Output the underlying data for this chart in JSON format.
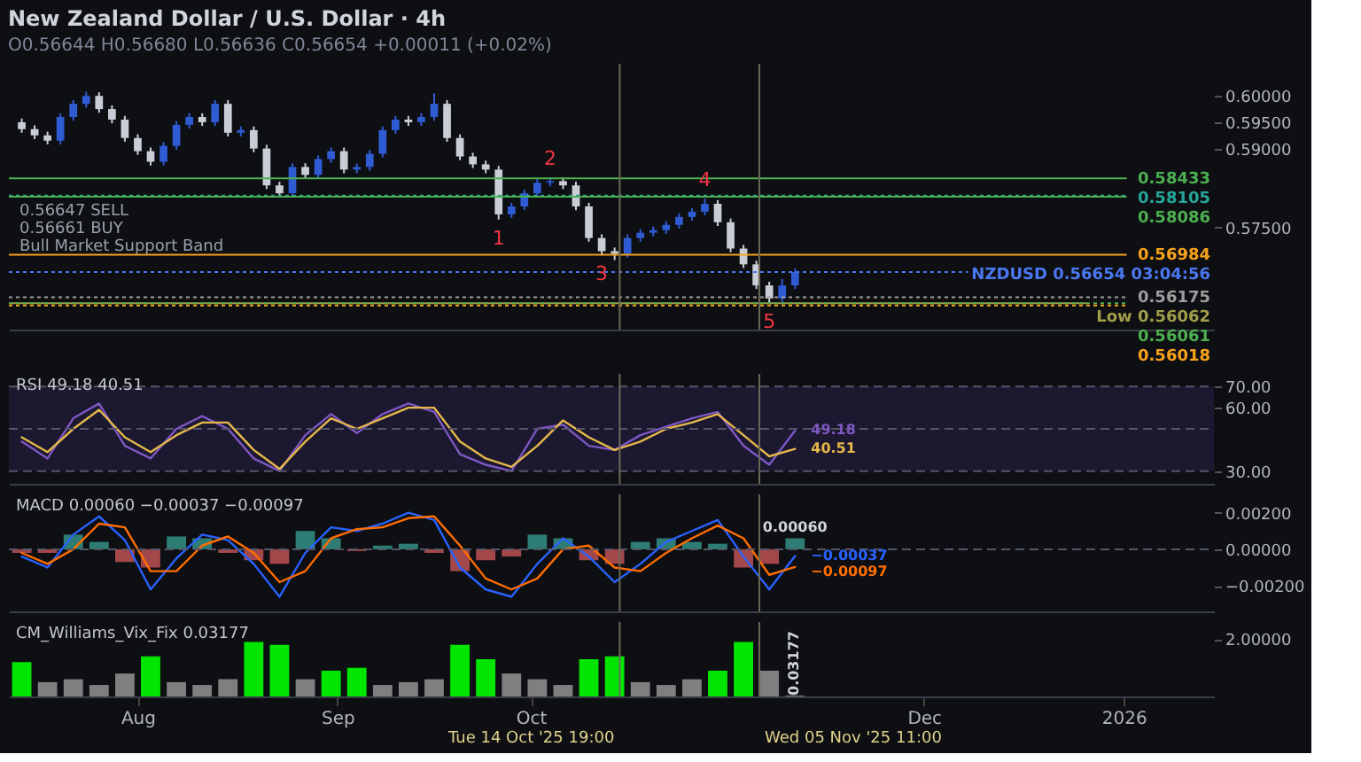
{
  "chart_data": [
    {
      "type": "candlestick",
      "title": "New Zealand Dollar / U.S. Dollar · 4h",
      "subtitle": "O0.56644 H0.56680 L0.56636 C0.56654 +0.00011 (+0.02%)",
      "x": [
        "2025-07-14",
        "2025-07-16",
        "2025-07-18",
        "2025-07-20",
        "2025-07-22",
        "2025-07-24",
        "2025-07-26",
        "2025-07-28",
        "2025-07-30",
        "2025-08-01",
        "2025-08-03",
        "2025-08-05",
        "2025-08-07",
        "2025-08-09",
        "2025-08-11",
        "2025-08-13",
        "2025-08-15",
        "2025-08-17",
        "2025-08-19",
        "2025-08-21",
        "2025-08-23",
        "2025-08-25",
        "2025-08-27",
        "2025-08-29",
        "2025-08-31",
        "2025-09-02",
        "2025-09-04",
        "2025-09-06",
        "2025-09-08",
        "2025-09-10",
        "2025-09-12",
        "2025-09-14",
        "2025-09-16",
        "2025-09-18",
        "2025-09-20",
        "2025-09-22",
        "2025-09-24",
        "2025-09-26",
        "2025-09-28",
        "2025-09-30",
        "2025-10-02",
        "2025-10-04",
        "2025-10-06",
        "2025-10-08",
        "2025-10-10",
        "2025-10-12",
        "2025-10-14",
        "2025-10-16",
        "2025-10-18",
        "2025-10-20",
        "2025-10-22",
        "2025-10-24",
        "2025-10-26",
        "2025-10-28",
        "2025-10-30",
        "2025-11-01",
        "2025-11-03",
        "2025-11-05",
        "2025-11-07",
        "2025-11-09",
        "2025-11-11"
      ],
      "ohlc": [
        [
          0.595,
          0.5957,
          0.593,
          0.5937
        ],
        [
          0.5937,
          0.5944,
          0.5918,
          0.5925
        ],
        [
          0.5925,
          0.5932,
          0.5908,
          0.5915
        ],
        [
          0.5915,
          0.5967,
          0.5908,
          0.596
        ],
        [
          0.596,
          0.5992,
          0.5953,
          0.5985
        ],
        [
          0.5985,
          0.6008,
          0.5978,
          0.6
        ],
        [
          0.6,
          0.6007,
          0.5968,
          0.5975
        ],
        [
          0.5975,
          0.5982,
          0.5948,
          0.5955
        ],
        [
          0.5955,
          0.5962,
          0.5913,
          0.592
        ],
        [
          0.592,
          0.5927,
          0.5888,
          0.5895
        ],
        [
          0.5895,
          0.5902,
          0.5868,
          0.5875
        ],
        [
          0.5875,
          0.5912,
          0.5868,
          0.5905
        ],
        [
          0.5905,
          0.5952,
          0.5898,
          0.5945
        ],
        [
          0.5945,
          0.5967,
          0.5938,
          0.596
        ],
        [
          0.596,
          0.5967,
          0.5943,
          0.595
        ],
        [
          0.595,
          0.5992,
          0.5943,
          0.5985
        ],
        [
          0.5985,
          0.5992,
          0.5923,
          0.593
        ],
        [
          0.593,
          0.5942,
          0.5923,
          0.5935
        ],
        [
          0.5935,
          0.5942,
          0.5893,
          0.59
        ],
        [
          0.59,
          0.5907,
          0.5823,
          0.583
        ],
        [
          0.583,
          0.5837,
          0.5808,
          0.5815
        ],
        [
          0.5815,
          0.5872,
          0.5808,
          0.5865
        ],
        [
          0.5865,
          0.5872,
          0.5843,
          0.585
        ],
        [
          0.585,
          0.5887,
          0.5843,
          0.588
        ],
        [
          0.588,
          0.5902,
          0.5873,
          0.5895
        ],
        [
          0.5895,
          0.5902,
          0.5853,
          0.586
        ],
        [
          0.586,
          0.5872,
          0.5853,
          0.5865
        ],
        [
          0.5865,
          0.5897,
          0.5858,
          0.589
        ],
        [
          0.589,
          0.5942,
          0.5883,
          0.5935
        ],
        [
          0.5935,
          0.5962,
          0.5928,
          0.5955
        ],
        [
          0.5955,
          0.5962,
          0.5943,
          0.595
        ],
        [
          0.595,
          0.5967,
          0.5943,
          0.596
        ],
        [
          0.596,
          0.6005,
          0.5953,
          0.5985
        ],
        [
          0.5985,
          0.5992,
          0.5913,
          0.592
        ],
        [
          0.592,
          0.5927,
          0.5878,
          0.5885
        ],
        [
          0.5885,
          0.5892,
          0.5863,
          0.587
        ],
        [
          0.587,
          0.5877,
          0.5853,
          0.586
        ],
        [
          0.586,
          0.5867,
          0.5765,
          0.5775
        ],
        [
          0.5775,
          0.5797,
          0.5768,
          0.579
        ],
        [
          0.579,
          0.5822,
          0.5783,
          0.5815
        ],
        [
          0.5815,
          0.5843,
          0.5808,
          0.5835
        ],
        [
          0.5835,
          0.5845,
          0.5828,
          0.5838
        ],
        [
          0.5838,
          0.5845,
          0.5823,
          0.583
        ],
        [
          0.583,
          0.5837,
          0.5783,
          0.579
        ],
        [
          0.579,
          0.5797,
          0.5723,
          0.573
        ],
        [
          0.573,
          0.5737,
          0.5698,
          0.5705
        ],
        [
          0.5705,
          0.5712,
          0.5688,
          0.57
        ],
        [
          0.57,
          0.5737,
          0.5693,
          0.573
        ],
        [
          0.573,
          0.5747,
          0.5723,
          0.574
        ],
        [
          0.574,
          0.5752,
          0.5733,
          0.5745
        ],
        [
          0.5745,
          0.5762,
          0.5738,
          0.5755
        ],
        [
          0.5755,
          0.5777,
          0.5748,
          0.577
        ],
        [
          0.577,
          0.5787,
          0.5763,
          0.578
        ],
        [
          0.578,
          0.5805,
          0.5773,
          0.5795
        ],
        [
          0.5795,
          0.5802,
          0.5753,
          0.576
        ],
        [
          0.576,
          0.5767,
          0.5703,
          0.571
        ],
        [
          0.571,
          0.5717,
          0.5673,
          0.568
        ],
        [
          0.568,
          0.5687,
          0.5633,
          0.564
        ],
        [
          0.564,
          0.5647,
          0.56062,
          0.5615
        ],
        [
          0.5615,
          0.5652,
          0.5608,
          0.564
        ],
        [
          0.564,
          0.5672,
          0.5633,
          0.56654
        ]
      ],
      "colors": [
        "#c9cdd6",
        "#c9cdd6",
        "#c9cdd6",
        "#2f5bd3",
        "#2f5bd3",
        "#2f5bd3",
        "#c9cdd6",
        "#c9cdd6",
        "#c9cdd6",
        "#c9cdd6",
        "#c9cdd6",
        "#2f5bd3",
        "#2f5bd3",
        "#2f5bd3",
        "#c9cdd6",
        "#2f5bd3",
        "#c9cdd6",
        "#2f5bd3",
        "#c9cdd6",
        "#c9cdd6",
        "#c9cdd6",
        "#2f5bd3",
        "#c9cdd6",
        "#2f5bd3",
        "#2f5bd3",
        "#c9cdd6",
        "#2f5bd3",
        "#2f5bd3",
        "#2f5bd3",
        "#2f5bd3",
        "#c9cdd6",
        "#2f5bd3",
        "#2f5bd3",
        "#c9cdd6",
        "#c9cdd6",
        "#c9cdd6",
        "#c9cdd6",
        "#c9cdd6",
        "#2f5bd3",
        "#2f5bd3",
        "#2f5bd3",
        "#2f5bd3",
        "#c9cdd6",
        "#c9cdd6",
        "#c9cdd6",
        "#c9cdd6",
        "#c9cdd6",
        "#2f5bd3",
        "#2f5bd3",
        "#2f5bd3",
        "#2f5bd3",
        "#2f5bd3",
        "#2f5bd3",
        "#2f5bd3",
        "#c9cdd6",
        "#c9cdd6",
        "#c9cdd6",
        "#c9cdd6",
        "#c9cdd6",
        "#2f5bd3",
        "#2f5bd3"
      ],
      "xlim": [
        "2025-07-12",
        "2026-01-15"
      ],
      "ylim": [
        0.5556,
        0.6061
      ],
      "yticks": [
        {
          "value": 0.575,
          "label": "0.57500"
        },
        {
          "value": 0.59,
          "label": "0.59000"
        },
        {
          "value": 0.595,
          "label": "0.59500"
        },
        {
          "value": 0.6,
          "label": "0.60000"
        }
      ],
      "tick_labels": "y",
      "ref_lines": [
        {
          "axis": "y",
          "value": 0.58433,
          "label": "0.58433",
          "color": "#4caf50"
        },
        {
          "axis": "y",
          "value": 0.58105,
          "label": "0.58105",
          "color": "#26a69a",
          "line_style": "dotted"
        },
        {
          "axis": "y",
          "value": 0.58086,
          "label": "0.58086",
          "color": "#4caf50"
        },
        {
          "axis": "y",
          "value": 0.56984,
          "label": "0.56984",
          "color": "#f7a21b"
        },
        {
          "axis": "y",
          "value": 0.56654,
          "label": "NZDUSD 0.56654 03:04:56",
          "color": "#4a78f0",
          "line_style": "dotted"
        },
        {
          "axis": "y",
          "value": 0.56175,
          "label": "0.56175",
          "color": "#9e9e9e",
          "line_style": "dotted"
        },
        {
          "axis": "y",
          "value": 0.56062,
          "label": "Low 0.56062",
          "color": "#a19d4a"
        },
        {
          "axis": "y",
          "value": 0.56061,
          "label": "0.56061",
          "color": "#4caf50",
          "line_style": "dotted"
        },
        {
          "axis": "y",
          "value": 0.56018,
          "label": "0.56018",
          "color": "#f7a21b",
          "line_style": "dotted"
        },
        {
          "axis": "x",
          "value": "2025-10-14T19:00",
          "color": "#6b6a55"
        },
        {
          "axis": "x",
          "value": "2025-11-05T11:00",
          "color": "#6b6a55"
        }
      ],
      "annotations": [
        {
          "text": "1",
          "x": "2025-09-26",
          "y": 0.5765
        },
        {
          "text": "2",
          "x": "2025-10-04",
          "y": 0.5845
        },
        {
          "text": "3",
          "x": "2025-10-12",
          "y": 0.5698
        },
        {
          "text": "4",
          "x": "2025-10-28",
          "y": 0.5805
        },
        {
          "text": "5",
          "x": "2025-11-07",
          "y": 0.56062
        },
        "0.56647 SELL",
        "0.56661 BUY",
        "Bull Market Support Band"
      ]
    },
    {
      "type": "line",
      "title": "RSI 49.18 40.51",
      "x": [
        "2025-07-14",
        "2025-07-18",
        "2025-07-22",
        "2025-07-26",
        "2025-07-30",
        "2025-08-03",
        "2025-08-07",
        "2025-08-11",
        "2025-08-15",
        "2025-08-19",
        "2025-08-23",
        "2025-08-27",
        "2025-08-31",
        "2025-09-04",
        "2025-09-08",
        "2025-09-12",
        "2025-09-16",
        "2025-09-20",
        "2025-09-24",
        "2025-09-28",
        "2025-10-02",
        "2025-10-06",
        "2025-10-10",
        "2025-10-14",
        "2025-10-18",
        "2025-10-22",
        "2025-10-26",
        "2025-10-30",
        "2025-11-03",
        "2025-11-07",
        "2025-11-11"
      ],
      "series": [
        {
          "color": "#7e57c2",
          "values": [
            44,
            36,
            55,
            62,
            42,
            36,
            50,
            56,
            50,
            36,
            30,
            47,
            57,
            48,
            57,
            62,
            58,
            38,
            33,
            30,
            50,
            52,
            42,
            40,
            47,
            51,
            55,
            58,
            42,
            33,
            49.18
          ],
          "value_labels": [
            null,
            null,
            null,
            null,
            null,
            null,
            null,
            null,
            null,
            null,
            null,
            null,
            null,
            null,
            null,
            null,
            null,
            null,
            null,
            null,
            null,
            null,
            null,
            null,
            null,
            null,
            null,
            null,
            null,
            null,
            "49.18"
          ]
        },
        {
          "color": "#e6b84a",
          "values": [
            46,
            39,
            50,
            59,
            46,
            39,
            47,
            53,
            53,
            40,
            31,
            44,
            55,
            50,
            55,
            60,
            60,
            44,
            36,
            32,
            42,
            54,
            46,
            40,
            44,
            50,
            53,
            57,
            47,
            37,
            40.51
          ],
          "value_labels": [
            null,
            null,
            null,
            null,
            null,
            null,
            null,
            null,
            null,
            null,
            null,
            null,
            null,
            null,
            null,
            null,
            null,
            null,
            null,
            null,
            null,
            null,
            null,
            null,
            null,
            null,
            null,
            null,
            null,
            null,
            "40.51"
          ]
        }
      ],
      "xlim": [
        "2025-07-12",
        "2026-01-15"
      ],
      "ylim": [
        24,
        76
      ],
      "yticks": [
        {
          "value": 30,
          "label": "30.00"
        },
        {
          "value": 60,
          "label": "60.00"
        },
        {
          "value": 70,
          "label": "70.00"
        }
      ],
      "tick_labels": "y",
      "bands": [
        {
          "axis": "y",
          "from": 30,
          "to": 70,
          "color": "#1b1830"
        }
      ],
      "ref_lines": [
        {
          "axis": "y",
          "value": 70,
          "color": "#55556a",
          "line_style": "dashed"
        },
        {
          "axis": "y",
          "value": 50,
          "color": "#55556a",
          "line_style": "dashed"
        },
        {
          "axis": "y",
          "value": 30,
          "color": "#55556a",
          "line_style": "dashed"
        },
        {
          "axis": "x",
          "value": "2025-10-14T19:00",
          "color": "#6b6a55"
        },
        {
          "axis": "x",
          "value": "2025-11-05T11:00",
          "color": "#6b6a55"
        }
      ]
    },
    {
      "type": "line",
      "title": "MACD 0.00060 −0.00037 −0.00097",
      "x": [
        "2025-07-14",
        "2025-07-18",
        "2025-07-22",
        "2025-07-26",
        "2025-07-30",
        "2025-08-03",
        "2025-08-07",
        "2025-08-11",
        "2025-08-15",
        "2025-08-19",
        "2025-08-23",
        "2025-08-27",
        "2025-08-31",
        "2025-09-04",
        "2025-09-08",
        "2025-09-12",
        "2025-09-16",
        "2025-09-20",
        "2025-09-24",
        "2025-09-28",
        "2025-10-02",
        "2025-10-06",
        "2025-10-10",
        "2025-10-14",
        "2025-10-18",
        "2025-10-22",
        "2025-10-26",
        "2025-10-30",
        "2025-11-03",
        "2025-11-07",
        "2025-11-11"
      ],
      "series": [
        {
          "type": "bar",
          "values": [
            -0.0002,
            -0.0002,
            0.0008,
            0.0004,
            -0.0007,
            -0.001,
            0.0007,
            0.0006,
            -0.0002,
            -0.0006,
            -0.0008,
            0.001,
            0.0006,
            -0.0001,
            0.0002,
            0.0003,
            -0.0002,
            -0.0012,
            -0.0006,
            -0.0004,
            0.0008,
            0.0006,
            -0.0006,
            -0.0008,
            0.0004,
            0.0006,
            0.0004,
            0.0003,
            -0.001,
            -0.0008,
            0.0006
          ],
          "colors": [
            "#a2474a",
            "#a2474a",
            "#2e7d74",
            "#2e7d74",
            "#a2474a",
            "#a2474a",
            "#2e7d74",
            "#2e7d74",
            "#a2474a",
            "#a2474a",
            "#a2474a",
            "#2e7d74",
            "#2e7d74",
            "#a2474a",
            "#2e7d74",
            "#2e7d74",
            "#a2474a",
            "#a2474a",
            "#a2474a",
            "#a2474a",
            "#2e7d74",
            "#2e7d74",
            "#a2474a",
            "#a2474a",
            "#2e7d74",
            "#2e7d74",
            "#2e7d74",
            "#2e7d74",
            "#a2474a",
            "#a2474a",
            "#2e7d74"
          ],
          "value_labels": [
            null,
            null,
            null,
            null,
            null,
            null,
            null,
            null,
            null,
            null,
            null,
            null,
            null,
            null,
            null,
            null,
            null,
            null,
            null,
            null,
            null,
            null,
            null,
            null,
            null,
            null,
            null,
            null,
            null,
            null,
            "0.00060"
          ]
        },
        {
          "color": "#2962ff",
          "values": [
            -0.0004,
            -0.001,
            0.0008,
            0.0018,
            0.0005,
            -0.0022,
            -0.0005,
            0.0008,
            0.0005,
            -0.0008,
            -0.0026,
            -0.0002,
            0.0012,
            0.001,
            0.0014,
            0.002,
            0.0016,
            -0.001,
            -0.0022,
            -0.0026,
            -0.0008,
            0.0006,
            -0.0004,
            -0.0018,
            -0.0008,
            0.0004,
            0.001,
            0.0016,
            -0.0004,
            -0.0022,
            -0.00037
          ],
          "value_labels": [
            null,
            null,
            null,
            null,
            null,
            null,
            null,
            null,
            null,
            null,
            null,
            null,
            null,
            null,
            null,
            null,
            null,
            null,
            null,
            null,
            null,
            null,
            null,
            null,
            null,
            null,
            null,
            null,
            null,
            null,
            "−0.00037"
          ]
        },
        {
          "color": "#ff6d00",
          "values": [
            -0.0002,
            -0.0008,
            0.0,
            0.0014,
            0.0012,
            -0.0012,
            -0.0012,
            0.0002,
            0.0007,
            -0.0002,
            -0.0018,
            -0.0012,
            0.0006,
            0.0011,
            0.0012,
            0.0017,
            0.0018,
            0.0002,
            -0.0016,
            -0.0022,
            -0.0016,
            0.0,
            0.0002,
            -0.001,
            -0.0012,
            -0.0002,
            0.0006,
            0.0013,
            0.0006,
            -0.0014,
            -0.00097
          ],
          "value_labels": [
            null,
            null,
            null,
            null,
            null,
            null,
            null,
            null,
            null,
            null,
            null,
            null,
            null,
            null,
            null,
            null,
            null,
            null,
            null,
            null,
            null,
            null,
            null,
            null,
            null,
            null,
            null,
            null,
            null,
            null,
            "−0.00097"
          ]
        }
      ],
      "xlim": [
        "2025-07-12",
        "2026-01-15"
      ],
      "ylim": [
        -0.0034,
        0.003
      ],
      "yticks": [
        {
          "value": -0.002,
          "label": "−0.00200"
        },
        {
          "value": 0,
          "label": "0.00000"
        },
        {
          "value": 0.002,
          "label": "0.00200"
        }
      ],
      "tick_labels": "y",
      "ref_lines": [
        {
          "axis": "y",
          "value": 0,
          "color": "#55556a",
          "line_style": "dashed"
        },
        {
          "axis": "x",
          "value": "2025-10-14T19:00",
          "color": "#6b6a55"
        },
        {
          "axis": "x",
          "value": "2025-11-05T11:00",
          "color": "#6b6a55"
        }
      ]
    },
    {
      "type": "bar",
      "title": "CM_Williams_Vix_Fix 0.03177",
      "x": [
        "2025-07-14",
        "2025-07-18",
        "2025-07-22",
        "2025-07-26",
        "2025-07-30",
        "2025-08-03",
        "2025-08-07",
        "2025-08-11",
        "2025-08-15",
        "2025-08-19",
        "2025-08-23",
        "2025-08-27",
        "2025-08-31",
        "2025-09-04",
        "2025-09-08",
        "2025-09-12",
        "2025-09-16",
        "2025-09-20",
        "2025-09-24",
        "2025-09-28",
        "2025-10-02",
        "2025-10-06",
        "2025-10-10",
        "2025-10-14",
        "2025-10-18",
        "2025-10-22",
        "2025-10-26",
        "2025-10-30",
        "2025-11-03",
        "2025-11-07",
        "2025-11-11"
      ],
      "values": [
        1.2,
        0.5,
        0.6,
        0.4,
        0.8,
        1.4,
        0.5,
        0.4,
        0.6,
        1.9,
        1.8,
        0.6,
        0.9,
        1.0,
        0.4,
        0.5,
        0.6,
        1.8,
        1.3,
        0.8,
        0.6,
        0.4,
        1.3,
        1.4,
        0.5,
        0.4,
        0.6,
        0.9,
        1.9,
        0.9,
        0.03177
      ],
      "colors": [
        "#00e600",
        "#7f7f7f",
        "#7f7f7f",
        "#7f7f7f",
        "#7f7f7f",
        "#00e600",
        "#7f7f7f",
        "#7f7f7f",
        "#7f7f7f",
        "#00e600",
        "#00e600",
        "#7f7f7f",
        "#00e600",
        "#00e600",
        "#7f7f7f",
        "#7f7f7f",
        "#7f7f7f",
        "#00e600",
        "#00e600",
        "#7f7f7f",
        "#7f7f7f",
        "#7f7f7f",
        "#00e600",
        "#00e600",
        "#7f7f7f",
        "#7f7f7f",
        "#7f7f7f",
        "#00e600",
        "#00e600",
        "#7f7f7f",
        "#7f7f7f"
      ],
      "value_labels": [
        null,
        null,
        null,
        null,
        null,
        null,
        null,
        null,
        null,
        null,
        null,
        null,
        null,
        null,
        null,
        null,
        null,
        null,
        null,
        null,
        null,
        null,
        null,
        null,
        null,
        null,
        null,
        null,
        null,
        null,
        "0.03177"
      ],
      "xlim": [
        "2025-07-12",
        "2026-01-15"
      ],
      "xticks": [
        {
          "value": "2025-08-01",
          "label": "Aug"
        },
        {
          "value": "2025-09-01",
          "label": "Sep"
        },
        {
          "value": "2025-10-01",
          "label": "Oct"
        },
        {
          "value": "2025-12-01",
          "label": "Dec"
        },
        {
          "value": "2026-01-01",
          "label": "2026"
        }
      ],
      "ylim": [
        0,
        2.6
      ],
      "yticks": [
        {
          "value": 2,
          "label": "2.00000"
        }
      ],
      "ref_lines": [
        {
          "axis": "x",
          "value": "2025-10-14T19:00",
          "label": "Tue 14 Oct '25  19:00",
          "color": "#6b6a55"
        },
        {
          "axis": "x",
          "value": "2025-11-05T11:00",
          "label": "Wed 05 Nov '25  11:00",
          "color": "#6b6a55"
        }
      ]
    }
  ]
}
